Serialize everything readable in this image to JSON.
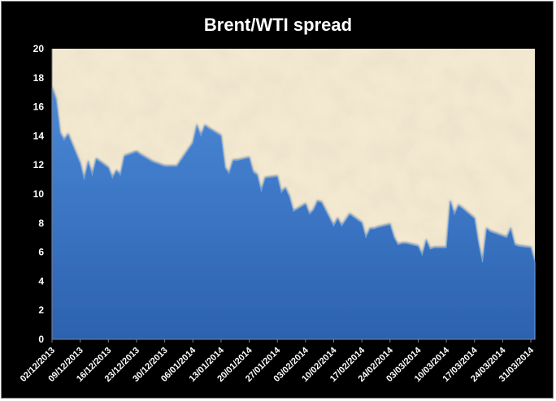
{
  "chart_data": {
    "type": "area",
    "title": "Brent/WTI spread",
    "xlabel": "",
    "ylabel": "",
    "ylim": [
      0,
      20
    ],
    "yticks": [
      0,
      2,
      4,
      6,
      8,
      10,
      12,
      14,
      16,
      18,
      20
    ],
    "x_tick_labels": [
      "02/12/2013",
      "09/12/2013",
      "16/12/2013",
      "23/12/2013",
      "30/12/2013",
      "06/01/2014",
      "13/01/2014",
      "20/01/2014",
      "27/01/2014",
      "03/02/2014",
      "10/02/2014",
      "17/02/2014",
      "24/02/2014",
      "03/03/2014",
      "10/03/2014",
      "17/03/2014",
      "24/03/2014",
      "31/03/2014"
    ],
    "grid": false,
    "legend": "none",
    "colors": {
      "fill": "#3d78c8",
      "plot_bg": "#eedcb8",
      "background": "#000000"
    },
    "series": [
      {
        "x": [
          "2013-12-02",
          "2013-12-03",
          "2013-12-04",
          "2013-12-05",
          "2013-12-06",
          "2013-12-09",
          "2013-12-10",
          "2013-12-11",
          "2013-12-12",
          "2013-12-13",
          "2013-12-16",
          "2013-12-17",
          "2013-12-18",
          "2013-12-19",
          "2013-12-20",
          "2013-12-23",
          "2013-12-24",
          "2013-12-27",
          "2013-12-30",
          "2013-12-31",
          "2014-01-02",
          "2014-01-03",
          "2014-01-06",
          "2014-01-07",
          "2014-01-08",
          "2014-01-09",
          "2014-01-10",
          "2014-01-13",
          "2014-01-14",
          "2014-01-15",
          "2014-01-16",
          "2014-01-17",
          "2014-01-20",
          "2014-01-21",
          "2014-01-22",
          "2014-01-23",
          "2014-01-24",
          "2014-01-27",
          "2014-01-28",
          "2014-01-29",
          "2014-01-30",
          "2014-01-31",
          "2014-02-03",
          "2014-02-04",
          "2014-02-05",
          "2014-02-06",
          "2014-02-07",
          "2014-02-10",
          "2014-02-11",
          "2014-02-12",
          "2014-02-13",
          "2014-02-14",
          "2014-02-17",
          "2014-02-18",
          "2014-02-19",
          "2014-02-20",
          "2014-02-21",
          "2014-02-24",
          "2014-02-25",
          "2014-02-26",
          "2014-02-27",
          "2014-02-28",
          "2014-03-03",
          "2014-03-04",
          "2014-03-05",
          "2014-03-06",
          "2014-03-07",
          "2014-03-10",
          "2014-03-11",
          "2014-03-12",
          "2014-03-13",
          "2014-03-14",
          "2014-03-17",
          "2014-03-18",
          "2014-03-19",
          "2014-03-20",
          "2014-03-21",
          "2014-03-24",
          "2014-03-25",
          "2014-03-26",
          "2014-03-27",
          "2014-03-28",
          "2014-03-31",
          "2014-04-01"
        ],
        "values": [
          17.3,
          16.5,
          14.2,
          13.7,
          14.1,
          12.1,
          11.0,
          12.2,
          11.3,
          12.4,
          11.8,
          11.1,
          11.6,
          11.3,
          12.6,
          12.9,
          12.7,
          12.2,
          11.9,
          11.9,
          11.9,
          12.3,
          13.5,
          14.7,
          14.0,
          14.7,
          14.5,
          14.0,
          11.8,
          11.4,
          12.3,
          12.3,
          12.5,
          11.5,
          11.3,
          10.2,
          11.1,
          11.2,
          10.1,
          10.4,
          9.8,
          8.8,
          9.3,
          8.6,
          8.9,
          9.5,
          9.4,
          7.8,
          8.3,
          7.8,
          8.2,
          8.6,
          8.0,
          7.0,
          7.6,
          7.6,
          7.7,
          7.9,
          7.0,
          6.5,
          6.6,
          6.6,
          6.4,
          5.8,
          6.8,
          6.2,
          6.3,
          6.3,
          9.5,
          8.6,
          9.2,
          9.0,
          8.3,
          6.6,
          5.3,
          7.6,
          7.4,
          7.1,
          7.0,
          7.6,
          6.5,
          6.4,
          6.3,
          5.3
        ]
      }
    ]
  }
}
